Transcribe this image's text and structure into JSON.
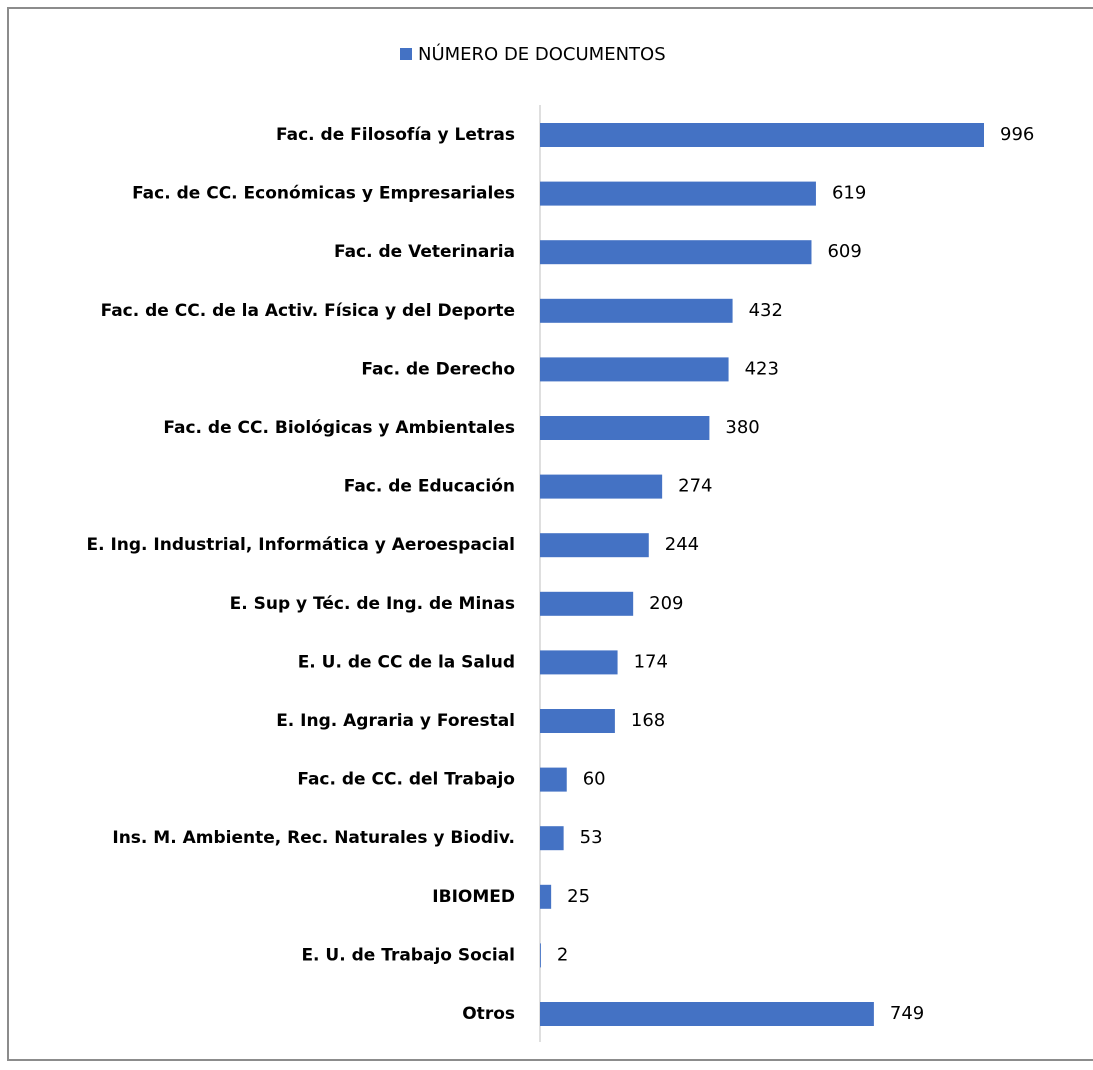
{
  "chart_data": {
    "type": "bar",
    "orientation": "horizontal",
    "categories": [
      "Fac. de Filosofía y Letras",
      "Fac. de CC. Económicas y Empresariales",
      "Fac. de Veterinaria",
      "Fac. de CC. de la Activ. Física y del Deporte",
      "Fac. de Derecho",
      "Fac. de CC. Biológicas y Ambientales",
      "Fac. de Educación",
      "E. Ing. Industrial, Informática y Aeroespacial",
      "E. Sup y Téc. de Ing. de Minas",
      "E. U. de CC de la Salud",
      "E. Ing. Agraria y Forestal",
      "Fac. de CC. del Trabajo",
      "Ins. M. Ambiente, Rec. Naturales y Biodiv.",
      "IBIOMED",
      "E. U. de Trabajo Social",
      "Otros"
    ],
    "series": [
      {
        "name": "NÚMERO DE DOCUMENTOS",
        "color": "#4472c4",
        "values": [
          996,
          619,
          609,
          432,
          423,
          380,
          274,
          244,
          209,
          174,
          168,
          60,
          53,
          25,
          2,
          749
        ]
      }
    ],
    "legend": "top"
  }
}
